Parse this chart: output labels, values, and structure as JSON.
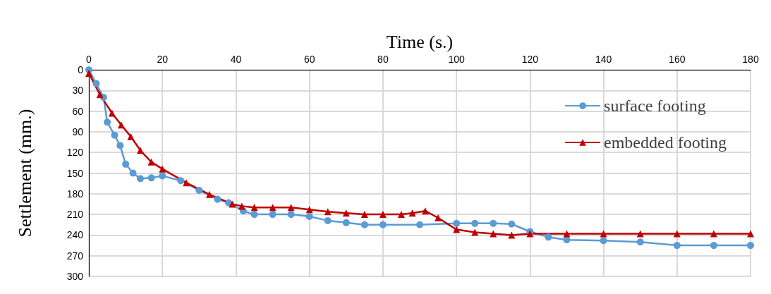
{
  "chart_data": {
    "type": "line",
    "xlabel": "Time (s.)",
    "ylabel": "Settlement (mm.)",
    "xlim": [
      0,
      180
    ],
    "xticks": [
      0,
      20,
      40,
      60,
      80,
      100,
      120,
      140,
      160,
      180
    ],
    "ylim": [
      300,
      0
    ],
    "yticks": [
      0,
      30,
      60,
      90,
      120,
      150,
      180,
      210,
      240,
      270,
      300
    ],
    "grid": true,
    "legend": "top right",
    "series": [
      {
        "name": "surface footing",
        "color": "#5b9bd5",
        "marker": "circle",
        "x": [
          0,
          2,
          4,
          5,
          7,
          8.5,
          10,
          12,
          14,
          17,
          20,
          25,
          30,
          35,
          38,
          42,
          45,
          50,
          55,
          60,
          65,
          70,
          75,
          80,
          90,
          100,
          105,
          110,
          115,
          120,
          125,
          130,
          140,
          150,
          160,
          170,
          180
        ],
        "values": [
          0,
          20,
          40,
          76,
          95,
          110,
          137,
          150,
          158,
          157,
          154,
          161,
          175,
          188,
          193,
          205,
          210,
          210,
          210,
          213,
          219,
          222,
          225,
          225,
          225,
          223,
          223,
          223,
          224,
          235,
          243,
          247,
          248,
          250,
          255,
          255,
          255
        ]
      },
      {
        "name": "embedded footing",
        "color": "#c00000",
        "marker": "triangle",
        "x": [
          0,
          3,
          6.3,
          8.8,
          11.4,
          14,
          17,
          20,
          26.5,
          32.8,
          39,
          41.6,
          45,
          50,
          55,
          60,
          65,
          70,
          75,
          80,
          85,
          88,
          91.5,
          95,
          100,
          105,
          110,
          115,
          120,
          130,
          140,
          150,
          160,
          170,
          180
        ],
        "values": [
          5,
          36,
          63,
          80,
          97,
          117,
          134,
          144,
          164,
          181,
          195,
          198,
          200,
          200,
          200,
          203,
          206,
          208,
          210,
          210,
          210,
          208,
          205,
          215,
          232,
          236,
          238,
          240,
          238,
          238,
          238,
          238,
          238,
          238,
          238
        ]
      }
    ]
  }
}
